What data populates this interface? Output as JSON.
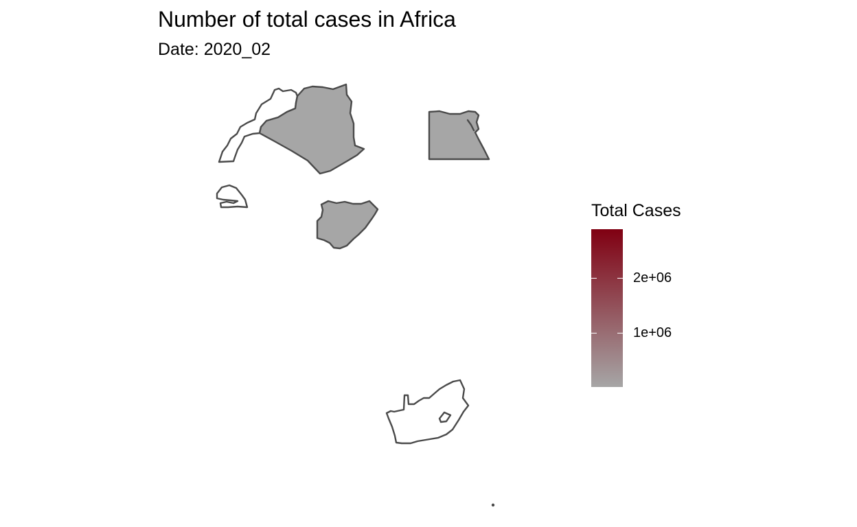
{
  "title": "Number of total cases in Africa",
  "subtitle": "Date: 2020_02",
  "legend": {
    "title": "Total Cases",
    "low_color": "#a6a6a6",
    "high_color": "#800012",
    "scale_max": 2900000,
    "breaks": [
      {
        "value": 1000000,
        "label": "1e+06"
      },
      {
        "value": 2000000,
        "label": "2e+06"
      }
    ]
  },
  "colors": {
    "border": "#4a4a4a",
    "no_data_fill": "#ffffff",
    "zero_fill": "#a6a6a6"
  },
  "regions": [
    {
      "name": "Morocco",
      "has_data": false
    },
    {
      "name": "Algeria",
      "has_data": true
    },
    {
      "name": "Egypt",
      "has_data": true
    },
    {
      "name": "Senegal",
      "has_data": false
    },
    {
      "name": "Nigeria",
      "has_data": true
    },
    {
      "name": "South Africa",
      "has_data": false
    }
  ]
}
